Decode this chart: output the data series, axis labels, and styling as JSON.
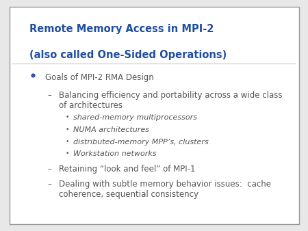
{
  "title_line1": "Remote Memory Access in MPI-2",
  "title_line2": "(also called One-Sided Operations)",
  "title_color": "#1F4E9E",
  "bg_color": "#E8E8E8",
  "slide_bg": "#FFFFFF",
  "border_color": "#999999",
  "bullet_color": "#3355AA",
  "text_color": "#555555",
  "content": [
    {
      "level": 0,
      "type": "bullet",
      "text": "Goals of MPI-2 RMA Design"
    },
    {
      "level": 1,
      "type": "dash",
      "text": "Balancing efficiency and portability across a wide class\nof architectures"
    },
    {
      "level": 2,
      "type": "smallbullet",
      "text": "shared-memory multiprocessors",
      "italic": true
    },
    {
      "level": 2,
      "type": "smallbullet",
      "text": "NUMA architectures",
      "italic": true
    },
    {
      "level": 2,
      "type": "smallbullet",
      "text": "distributed-memory MPP’s, clusters",
      "italic": true
    },
    {
      "level": 2,
      "type": "smallbullet",
      "text": "Workstation networks",
      "italic": true
    },
    {
      "level": 1,
      "type": "dash",
      "text": "Retaining “look and feel” of MPI-1"
    },
    {
      "level": 1,
      "type": "dash",
      "text": "Dealing with subtle memory behavior issues:  cache\ncoherence, sequential consistency"
    }
  ],
  "title_fontsize": 10.5,
  "body_fontsize": 8.5,
  "small_fontsize": 8.0
}
